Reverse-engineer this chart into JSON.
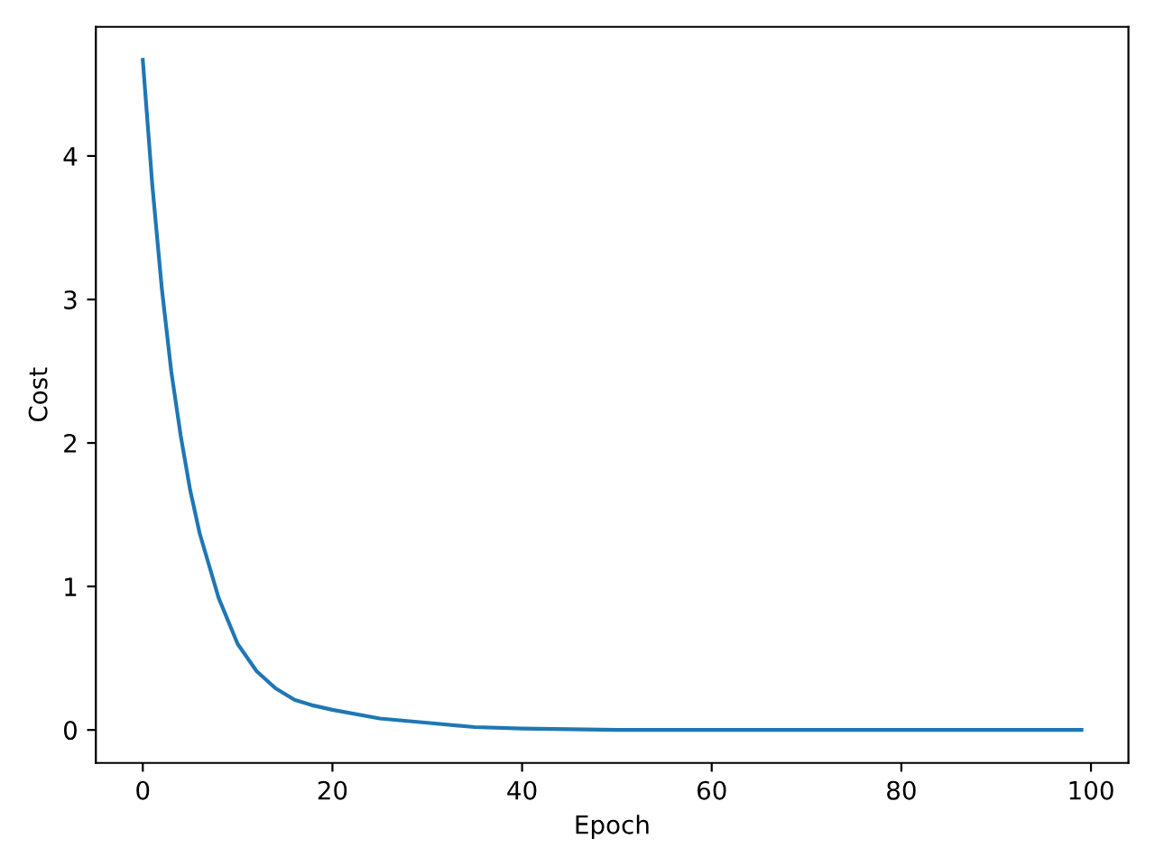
{
  "chart_data": {
    "type": "line",
    "xlabel": "Epoch",
    "ylabel": "Cost",
    "series": [
      {
        "color": "#1f77b4",
        "x": [
          0,
          1,
          2,
          3,
          4,
          5,
          6,
          8,
          10,
          12,
          14,
          16,
          18,
          20,
          25,
          30,
          35,
          40,
          50,
          60,
          70,
          80,
          90,
          99
        ],
        "values": [
          4.67,
          3.8,
          3.08,
          2.5,
          2.05,
          1.67,
          1.37,
          0.92,
          0.6,
          0.41,
          0.29,
          0.21,
          0.17,
          0.14,
          0.08,
          0.05,
          0.02,
          0.01,
          0,
          0,
          0,
          0,
          0,
          0
        ]
      }
    ],
    "xlim": [
      -4.95,
      103.95
    ],
    "ylim": [
      -0.23,
      4.9
    ],
    "xticks": [
      0,
      20,
      40,
      60,
      80,
      100
    ],
    "yticks": [
      0,
      1,
      2,
      3,
      4
    ],
    "grid": false,
    "marker": "none",
    "line_style": "solid"
  }
}
